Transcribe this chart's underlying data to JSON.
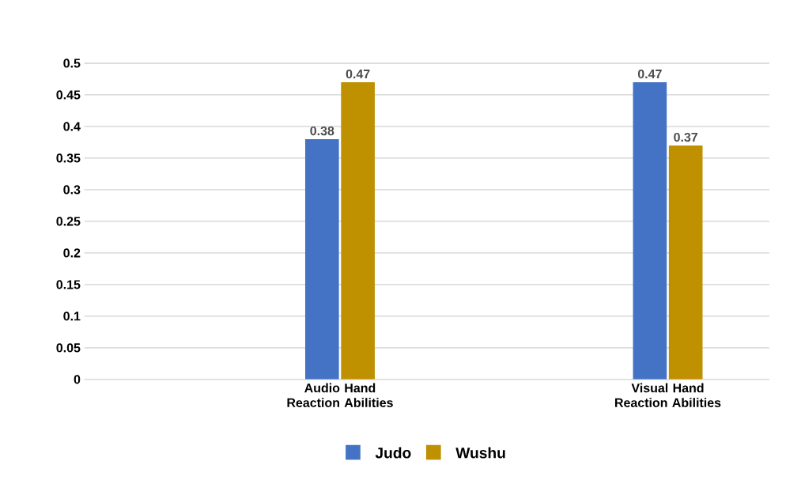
{
  "chart_data": {
    "type": "bar",
    "categories": [
      "Audio Hand Reaction Abilities",
      "Visual Hand Reaction Abilities"
    ],
    "series": [
      {
        "name": "Judo",
        "color": "#4472c4",
        "values": [
          0.38,
          0.47
        ]
      },
      {
        "name": "Wushu",
        "color": "#bf9000",
        "values": [
          0.47,
          0.37
        ]
      }
    ],
    "ylim": [
      0,
      0.5
    ],
    "yticks": [
      0,
      0.05,
      0.1,
      0.15,
      0.2,
      0.25,
      0.3,
      0.35,
      0.4,
      0.45,
      0.5
    ],
    "grid": "y",
    "legend": "bottom",
    "data_labels": true
  }
}
